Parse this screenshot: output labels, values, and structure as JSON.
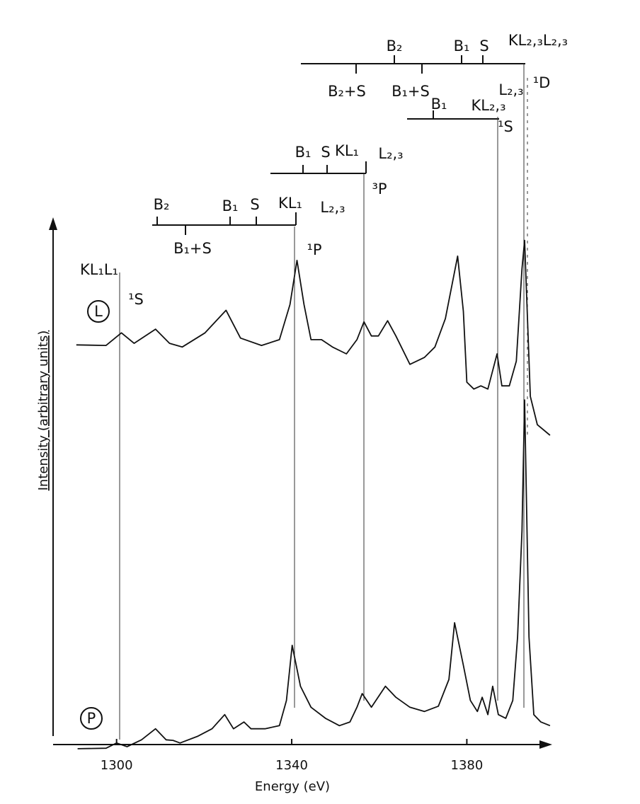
{
  "chart_data": {
    "type": "line",
    "xlabel": "Energy (eV)",
    "ylabel": "Intensity (arbitrary units)",
    "xlim": [
      1285.5,
      1399.5
    ],
    "xticks": [
      1300,
      1340,
      1380
    ],
    "ylim": [
      0,
      100
    ],
    "series": [
      {
        "name": "L",
        "color": "#111111",
        "x": [
          1290.8,
          1297.6,
          1301.1,
          1304.0,
          1308.9,
          1312.1,
          1315.0,
          1320.2,
          1325.0,
          1328.3,
          1333.1,
          1337.2,
          1339.6,
          1341.2,
          1342.8,
          1344.4,
          1346.8,
          1349.3,
          1352.5,
          1354.9,
          1356.5,
          1358.2,
          1359.8,
          1361.9,
          1363.8,
          1367.0,
          1370.3,
          1372.7,
          1375.1,
          1377.9,
          1379.2,
          1380.0,
          1381.6,
          1383.2,
          1384.8,
          1386.9,
          1388.0,
          1389.7,
          1391.3,
          1392.6,
          1393.2,
          1394.5,
          1396.1,
          1399.0
        ],
        "values": [
          76.1,
          76.0,
          78.4,
          76.4,
          79.1,
          76.4,
          75.7,
          78.4,
          82.7,
          77.4,
          76.0,
          77.1,
          83.8,
          92.2,
          83.8,
          77.1,
          77.1,
          75.7,
          74.4,
          77.1,
          80.5,
          77.8,
          77.8,
          80.7,
          77.8,
          72.4,
          73.7,
          75.7,
          81.1,
          93.0,
          82.5,
          69.0,
          67.7,
          68.3,
          67.7,
          74.4,
          68.3,
          68.3,
          73.0,
          90.6,
          96.0,
          66.3,
          60.9,
          58.9
        ]
      },
      {
        "name": "P",
        "color": "#111111",
        "x": [
          1291.1,
          1297.6,
          1300.0,
          1302.4,
          1305.7,
          1308.9,
          1311.3,
          1312.9,
          1314.5,
          1318.6,
          1321.8,
          1324.7,
          1326.7,
          1329.1,
          1330.7,
          1333.9,
          1337.2,
          1338.8,
          1340.1,
          1342.0,
          1344.4,
          1347.7,
          1350.9,
          1353.3,
          1354.9,
          1356.1,
          1358.2,
          1361.4,
          1363.8,
          1367.0,
          1370.3,
          1373.5,
          1375.9,
          1377.2,
          1379.2,
          1380.8,
          1382.4,
          1383.5,
          1384.8,
          1385.9,
          1387.2,
          1388.9,
          1390.5,
          1391.6,
          1392.6,
          1393.2,
          1394.2,
          1395.3,
          1396.9,
          1399.0
        ],
        "values": [
          -0.8,
          -0.7,
          0.3,
          -0.4,
          0.9,
          3.0,
          0.9,
          0.8,
          0.3,
          1.6,
          3.0,
          5.7,
          3.0,
          4.3,
          3.0,
          3.0,
          3.6,
          8.4,
          18.9,
          11.1,
          7.1,
          5.0,
          3.6,
          4.3,
          7.1,
          9.7,
          7.1,
          11.1,
          9.0,
          7.1,
          6.3,
          7.3,
          12.4,
          23.2,
          15.1,
          8.4,
          6.3,
          9.0,
          5.7,
          11.1,
          5.7,
          5.0,
          8.4,
          20.5,
          40.7,
          65.6,
          20.5,
          5.7,
          4.3,
          3.6
        ]
      }
    ],
    "annotations": [
      "B₂",
      "B₁",
      "S",
      "KL₂,₃L₂,₃",
      "B₂+S",
      "B₁+S",
      "B₁",
      "KL₂,₃",
      "L₂,₃",
      "¹D",
      "¹S",
      "B₁",
      "S",
      "KL₁",
      "L₂,₃",
      "³P",
      "B₂",
      "B₁",
      "S",
      "KL₁",
      "L₂,₃",
      "B₁+S",
      "¹P",
      "KL₁L₁",
      "¹S"
    ]
  }
}
